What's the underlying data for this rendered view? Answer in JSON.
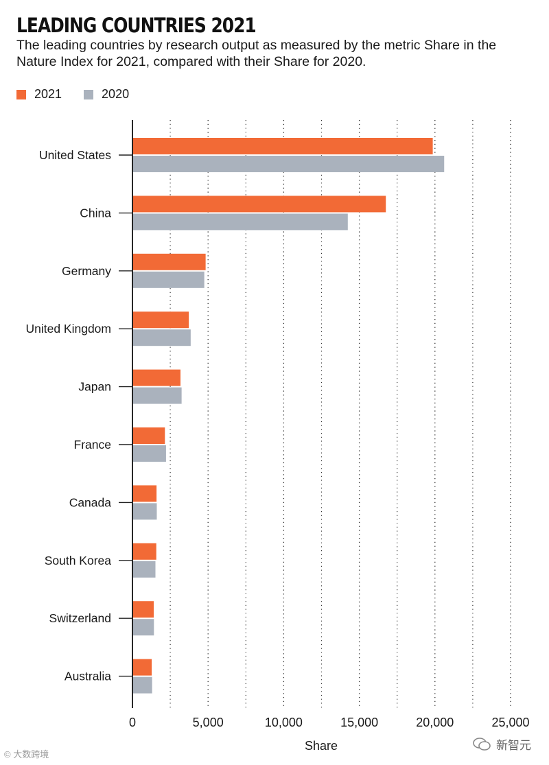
{
  "header": {
    "title": "LEADING COUNTRIES 2021",
    "subtitle": "The leading countries by research output as measured by the metric Share in the Nature Index for 2021, compared with their Share for 2020."
  },
  "legend": [
    {
      "label": "2021",
      "color": "#f26a36"
    },
    {
      "label": "2020",
      "color": "#aab2bd"
    }
  ],
  "chart_data": {
    "type": "bar",
    "orientation": "horizontal",
    "title": "LEADING COUNTRIES 2021",
    "xlabel": "Share",
    "ylabel": "",
    "xlim": [
      0,
      25000
    ],
    "xticks": [
      0,
      5000,
      10000,
      15000,
      20000,
      25000
    ],
    "xtick_labels": [
      "0",
      "5,000",
      "10,000",
      "15,000",
      "20,000",
      "25,000"
    ],
    "grid": "dotted vertical",
    "categories": [
      "United States",
      "China",
      "Germany",
      "United Kingdom",
      "Japan",
      "France",
      "Canada",
      "South Korea",
      "Switzerland",
      "Australia"
    ],
    "series": [
      {
        "name": "2021",
        "color": "#f26a36",
        "values": [
          19855,
          16754,
          4838,
          3727,
          3176,
          2146,
          1593,
          1577,
          1407,
          1275
        ]
      },
      {
        "name": "2020",
        "color": "#aab2bd",
        "values": [
          20610,
          14238,
          4750,
          3850,
          3250,
          2220,
          1610,
          1520,
          1420,
          1300
        ]
      }
    ]
  },
  "watermarks": {
    "left": "大数跨境",
    "right": "新智元"
  }
}
